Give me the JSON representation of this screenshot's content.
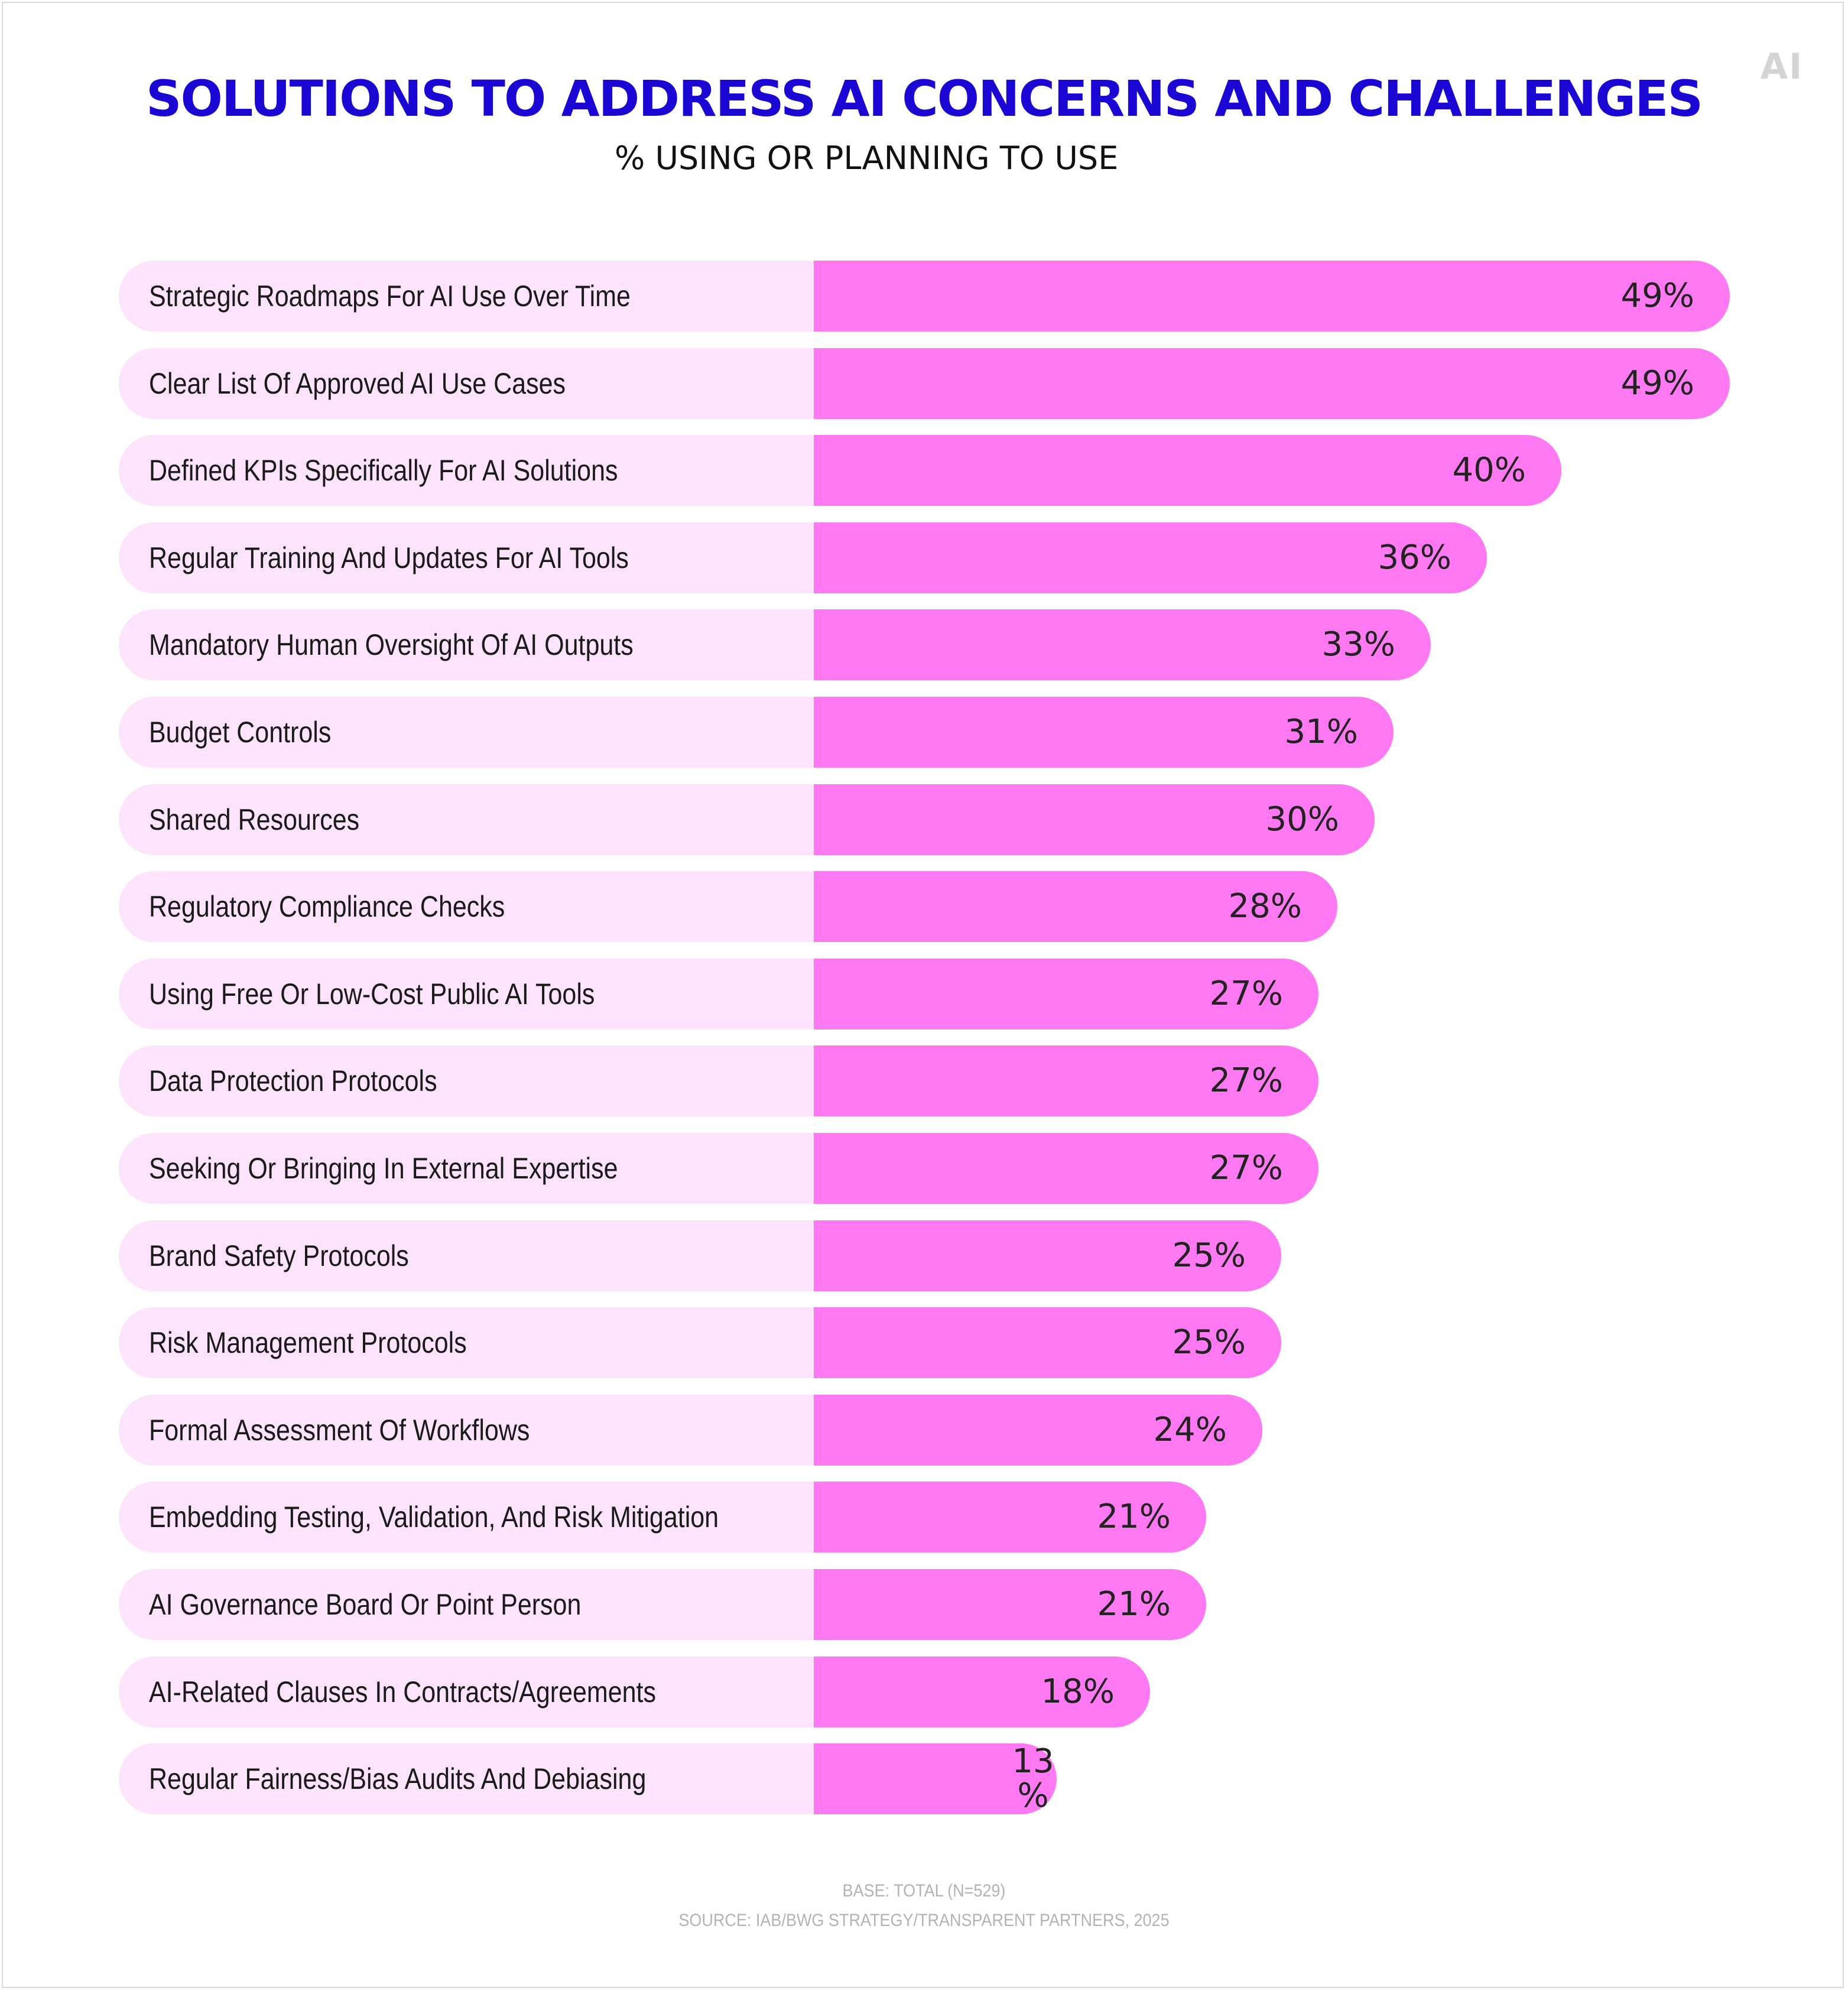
{
  "logo": "AI",
  "colors": {
    "title": "#1a07d4",
    "bar": "#ff79f3",
    "row_background": "#fde3fb",
    "footer": "#b3b3b3"
  },
  "chart_data": {
    "type": "bar",
    "orientation": "horizontal",
    "title": "SOLUTIONS TO ADDRESS AI CONCERNS AND CHALLENGES",
    "subtitle": "% USING OR PLANNING TO USE",
    "xlim": [
      0,
      49
    ],
    "grid": false,
    "categories": [
      "Strategic Roadmaps For AI Use Over Time",
      "Clear List Of Approved AI Use Cases",
      "Defined KPIs Specifically For AI Solutions",
      "Regular Training And Updates For AI Tools",
      "Mandatory Human Oversight Of AI Outputs",
      "Budget Controls",
      "Shared Resources",
      "Regulatory Compliance Checks",
      "Using Free Or Low-Cost Public AI Tools",
      "Data Protection Protocols",
      "Seeking Or Bringing In External Expertise",
      "Brand Safety Protocols",
      "Risk Management Protocols",
      "Formal Assessment Of Workflows",
      "Embedding Testing, Validation, And Risk Mitigation",
      "AI Governance Board Or Point Person",
      "AI-Related Clauses In Contracts/Agreements",
      "Regular Fairness/Bias Audits And Debiasing"
    ],
    "values": [
      49,
      49,
      40,
      36,
      33,
      31,
      30,
      28,
      27,
      27,
      27,
      25,
      25,
      24,
      21,
      21,
      18,
      13
    ],
    "value_suffix": "%"
  },
  "footer": {
    "base": "BASE: TOTAL (N=529)",
    "source": "SOURCE: IAB/BWG STRATEGY/TRANSPARENT PARTNERS, 2025"
  }
}
